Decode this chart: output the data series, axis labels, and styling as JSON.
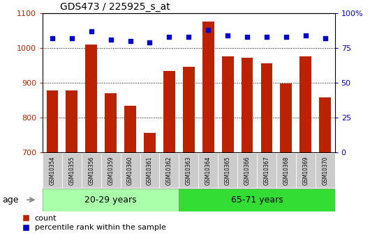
{
  "title": "GDS473 / 225925_s_at",
  "samples": [
    "GSM10354",
    "GSM10355",
    "GSM10356",
    "GSM10359",
    "GSM10360",
    "GSM10361",
    "GSM10362",
    "GSM10363",
    "GSM10364",
    "GSM10365",
    "GSM10366",
    "GSM10367",
    "GSM10368",
    "GSM10369",
    "GSM10370"
  ],
  "counts": [
    878,
    879,
    1010,
    871,
    835,
    757,
    935,
    947,
    1075,
    976,
    972,
    956,
    899,
    977,
    858
  ],
  "percentiles": [
    82,
    82,
    87,
    81,
    80,
    79,
    83,
    83,
    88,
    84,
    83,
    83,
    83,
    84,
    82
  ],
  "group1_label": "20-29 years",
  "group1_count": 7,
  "group2_label": "65-71 years",
  "group2_count": 8,
  "ylim_left": [
    700,
    1100
  ],
  "ylim_right": [
    0,
    100
  ],
  "yticks_left": [
    700,
    800,
    900,
    1000,
    1100
  ],
  "yticks_right": [
    0,
    25,
    50,
    75,
    100
  ],
  "ytick_labels_right": [
    "0",
    "25",
    "50",
    "75",
    "100%"
  ],
  "bar_color": "#bb2200",
  "dot_color": "#0000cc",
  "group1_bg": "#aaffaa",
  "group2_bg": "#33dd33",
  "tick_bg_color": "#cccccc",
  "age_label": "age",
  "legend_items": [
    "count",
    "percentile rank within the sample"
  ],
  "grid_color": "#000000"
}
